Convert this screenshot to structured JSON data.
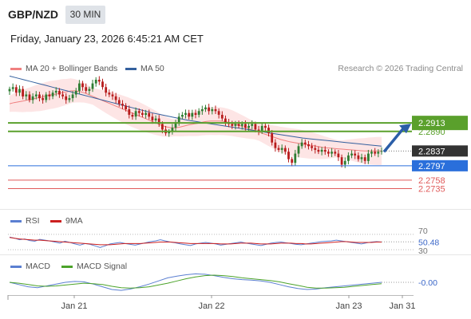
{
  "header": {
    "pair": "GBP/NZD",
    "timeframe": "30 MIN",
    "datetime": "Friday, January 23, 2026 6:45:21 AM CET"
  },
  "legend": {
    "ma20": "MA 20 + Bollinger Bands",
    "ma50": "MA 50",
    "credit": "Research © 2026 Trading Central",
    "rsi": "RSI",
    "rsi_ma": "9MA",
    "macd": "MACD",
    "macd_signal": "MACD Signal"
  },
  "colors": {
    "ma20": "#f08080",
    "bollinger_fill": "#fde0e0",
    "ma50": "#34609e",
    "candle_up": "#2e7d32",
    "candle_down": "#b71c1c",
    "resistance": "#5aa02c",
    "support_blue": "#2a6fdb",
    "support_red": "#e05a5a",
    "current_price_bg": "#333333",
    "rsi": "#5b7fd1",
    "rsi_ma": "#cc1f1f",
    "macd": "#5b7fd1",
    "macd_signal": "#4ca32a",
    "arrow": "#2b5ea8"
  },
  "chart_data": [
    {
      "type": "candlestick",
      "title": "GBP/NZD",
      "x_ticks": [
        "Jan 21",
        "Jan 22",
        "Jan 23",
        "Jan 31"
      ],
      "y_range": [
        2.268,
        2.303
      ],
      "levels": [
        {
          "value": 2.2913,
          "label": "2.2913",
          "role": "resistance-target",
          "color": "#5aa02c"
        },
        {
          "value": 2.289,
          "label": "2.2890",
          "role": "resistance",
          "color": "#5aa02c"
        },
        {
          "value": 2.2837,
          "label": "2.2837",
          "role": "current-price",
          "color": "#333333"
        },
        {
          "value": 2.2797,
          "label": "2.2797",
          "role": "support",
          "color": "#2a6fdb"
        },
        {
          "value": 2.2758,
          "label": "2.2758",
          "role": "support",
          "color": "#e05a5a"
        },
        {
          "value": 2.2735,
          "label": "2.2735",
          "role": "support",
          "color": "#e05a5a"
        }
      ],
      "close": [
        2.3005,
        2.301,
        2.2995,
        2.3005,
        2.2985,
        2.299,
        2.2975,
        2.2985,
        2.299,
        2.298,
        2.2975,
        2.299,
        2.2985,
        2.2995,
        2.3,
        2.299,
        2.2985,
        2.2975,
        2.298,
        2.299,
        2.3,
        2.302,
        2.301,
        2.3,
        2.3005,
        2.302,
        2.303,
        2.3025,
        2.301,
        2.2995,
        2.299,
        2.2985,
        2.2975,
        2.2965,
        2.296,
        2.295,
        2.2935,
        2.293,
        2.2945,
        2.294,
        2.2935,
        2.294,
        2.293,
        2.292,
        2.2925,
        2.291,
        2.2895,
        2.2885,
        2.289,
        2.29,
        2.2915,
        2.293,
        2.2935,
        2.294,
        2.293,
        2.294,
        2.2935,
        2.2945,
        2.295,
        2.2955,
        2.2945,
        2.295,
        2.2945,
        2.2935,
        2.2925,
        2.2915,
        2.291,
        2.2905,
        2.291,
        2.2905,
        2.291,
        2.29,
        2.2905,
        2.291,
        2.2895,
        2.289,
        2.2905,
        2.29,
        2.2885,
        2.286,
        2.2845,
        2.284,
        2.2845,
        2.2835,
        2.2815,
        2.2805,
        2.283,
        2.285,
        2.286,
        2.2855,
        2.285,
        2.2845,
        2.284,
        2.2835,
        2.284,
        2.2835,
        2.283,
        2.2835,
        2.283,
        2.282,
        2.28,
        2.281,
        2.2825,
        2.283,
        2.2825,
        2.2815,
        2.282,
        2.281,
        2.283,
        2.2835,
        2.283,
        2.2835,
        2.2837
      ],
      "ma20": [
        2.2965,
        2.2968,
        2.297,
        2.2972,
        2.2975,
        2.2977,
        2.298,
        2.2982,
        2.2985,
        2.2988,
        2.299,
        2.2992,
        2.2995,
        2.2997,
        2.3,
        2.3,
        2.2998,
        2.2995,
        2.299,
        2.2985,
        2.298,
        2.2975,
        2.297,
        2.2965,
        2.296,
        2.2955,
        2.295,
        2.2945,
        2.294,
        2.2935,
        2.293,
        2.2925,
        2.292,
        2.2915,
        2.291,
        2.2905,
        2.2902,
        2.29,
        2.29,
        2.2902,
        2.2905,
        2.2908,
        2.291,
        2.2912,
        2.2915,
        2.2917,
        2.2918,
        2.2918,
        2.2918,
        2.2917,
        2.2915,
        2.2912,
        2.2908,
        2.2904,
        2.29,
        2.2896,
        2.2892,
        2.2888,
        2.2884,
        2.288,
        2.2876,
        2.2872,
        2.2868,
        2.2865,
        2.2862,
        2.286,
        2.2858,
        2.2856,
        2.2854,
        2.2852,
        2.285,
        2.2848,
        2.2846,
        2.2845,
        2.2844,
        2.2843,
        2.2842,
        2.2841,
        2.284,
        2.2839,
        2.2838,
        2.2837,
        2.2837,
        2.2837,
        2.2837,
        2.2837
      ],
      "ma50": [
        2.304,
        2.3035,
        2.303,
        2.3025,
        2.302,
        2.3015,
        2.301,
        2.3005,
        2.3,
        2.2995,
        2.299,
        2.2985,
        2.298,
        2.2975,
        2.297,
        2.2965,
        2.296,
        2.2955,
        2.295,
        2.2945,
        2.294,
        2.2936,
        2.2932,
        2.2928,
        2.2924,
        2.292,
        2.2917,
        2.2914,
        2.2911,
        2.2908,
        2.2905,
        2.2902,
        2.2899,
        2.2896,
        2.2893,
        2.289,
        2.2887,
        2.2884,
        2.2881,
        2.2878,
        2.2875,
        2.2872,
        2.287,
        2.2868,
        2.2866,
        2.2864,
        2.2862,
        2.286,
        2.2858,
        2.2856,
        2.2854,
        2.2852,
        2.285
      ]
    },
    {
      "type": "line",
      "title": "RSI",
      "y_ticks": [
        70,
        50.48,
        30
      ],
      "current": 50.48,
      "series": [
        {
          "name": "RSI",
          "values": [
            63,
            60,
            56,
            58,
            54,
            52,
            57,
            55,
            53,
            50,
            47,
            52,
            49,
            45,
            42,
            46,
            44,
            40,
            36,
            40,
            45,
            47,
            49,
            46,
            44,
            42,
            45,
            48,
            51,
            53,
            56,
            53,
            50,
            48,
            45,
            43,
            41,
            45,
            47,
            49,
            47,
            45,
            42,
            44,
            46,
            48,
            50,
            47,
            45,
            43,
            41,
            44,
            47,
            49,
            50,
            48,
            46,
            44,
            43,
            45,
            47,
            49,
            51,
            52,
            53,
            55,
            53,
            51,
            49,
            47,
            45,
            48,
            50,
            51,
            50
          ]
        },
        {
          "name": "9MA",
          "values": [
            62,
            60,
            58,
            57,
            56,
            55,
            55,
            54,
            53,
            52,
            51,
            50,
            49,
            48,
            47,
            46,
            45,
            44,
            43,
            43,
            43,
            44,
            45,
            46,
            46,
            46,
            46,
            47,
            48,
            49,
            50,
            50,
            50,
            49,
            48,
            47,
            46,
            46,
            46,
            46,
            46,
            46,
            45,
            45,
            45,
            46,
            47,
            47,
            47,
            46,
            45,
            45,
            45,
            46,
            47,
            47,
            47,
            46,
            46,
            45,
            45,
            46,
            47,
            48,
            49,
            50,
            51,
            51,
            50,
            49,
            49,
            49,
            49,
            50,
            50
          ]
        }
      ]
    },
    {
      "type": "line",
      "title": "MACD",
      "current_label": "-0.00",
      "series": [
        {
          "name": "MACD",
          "values": [
            0.0,
            -0.0005,
            -0.001,
            -0.0012,
            -0.0008,
            -0.0004,
            0.0,
            0.0002,
            0.0001,
            -0.0004,
            -0.001,
            -0.0016,
            -0.0018,
            -0.0015,
            -0.001,
            -0.0004,
            0.0003,
            0.001,
            0.0014,
            0.0017,
            0.0019,
            0.0018,
            0.0015,
            0.0011,
            0.0008,
            0.0006,
            0.0005,
            0.0003,
            0.0,
            -0.0005,
            -0.001,
            -0.0014,
            -0.0016,
            -0.0015,
            -0.0012,
            -0.001,
            -0.0008,
            -0.0006,
            -0.0004,
            -0.0002,
            0.0
          ]
        },
        {
          "name": "MACD Signal",
          "values": [
            0.0,
            -0.0002,
            -0.0005,
            -0.0008,
            -0.0009,
            -0.0008,
            -0.0006,
            -0.0004,
            -0.0002,
            -0.0003,
            -0.0005,
            -0.0009,
            -0.0012,
            -0.0013,
            -0.0012,
            -0.001,
            -0.0006,
            -0.0002,
            0.0003,
            0.0008,
            0.0012,
            0.0015,
            0.0016,
            0.0015,
            0.0013,
            0.001,
            0.0008,
            0.0006,
            0.0004,
            0.0001,
            -0.0003,
            -0.0007,
            -0.0011,
            -0.0013,
            -0.0013,
            -0.0012,
            -0.0011,
            -0.0009,
            -0.0007,
            -0.0005,
            -0.0003
          ]
        }
      ]
    }
  ]
}
